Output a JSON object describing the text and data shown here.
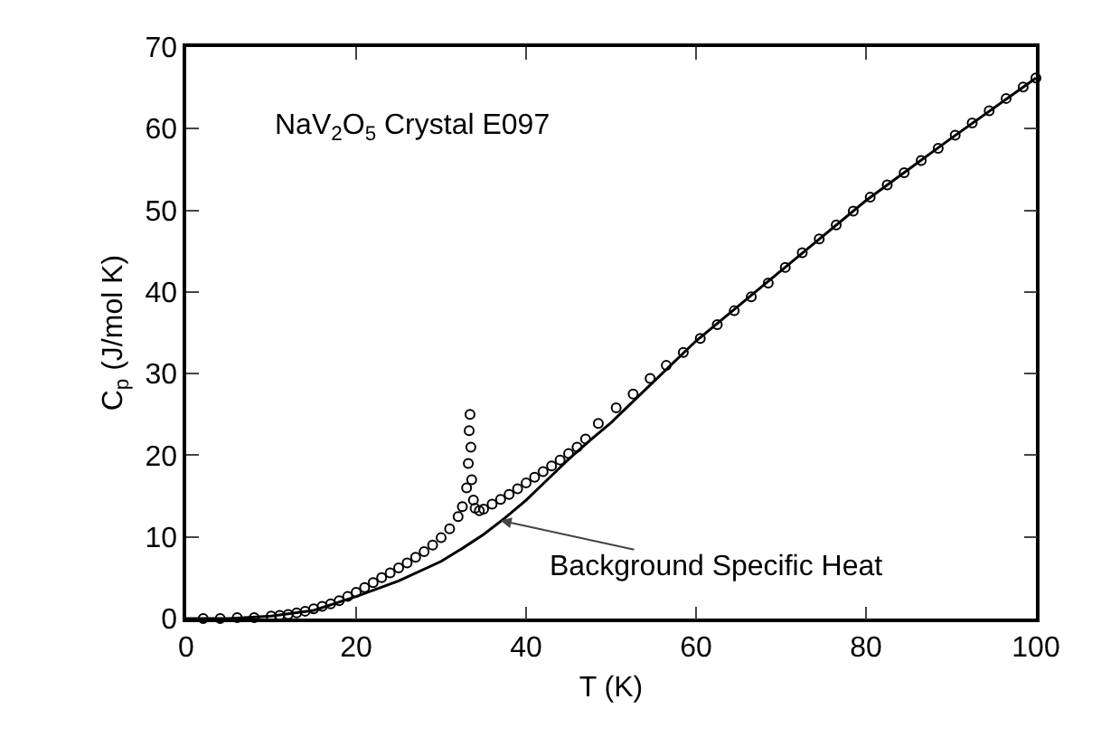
{
  "chart_data": {
    "type": "scatter",
    "xlabel": "T (K)",
    "ylabel": "C$_{p}$ (J/mol K)",
    "xlim": [
      0,
      100
    ],
    "xticks": [
      0,
      20,
      40,
      60,
      80,
      100
    ],
    "ylim": [
      0,
      70
    ],
    "yticks": [
      0,
      10,
      20,
      30,
      40,
      50,
      60,
      70
    ],
    "grid": false,
    "marker": "circle",
    "series": [
      {
        "color": "#000000",
        "x": [
          2,
          4,
          6,
          8,
          10,
          11,
          12,
          13,
          14,
          15,
          16,
          17,
          18,
          19,
          20,
          21,
          22,
          23,
          24,
          25,
          26,
          27,
          28,
          29,
          30,
          31,
          32,
          32.5,
          33,
          33.2,
          33.3,
          33.4,
          33.5,
          33.6,
          33.8,
          34,
          34.5,
          35,
          36,
          37,
          38,
          39,
          40,
          41,
          42,
          43,
          44,
          45,
          46,
          47,
          48.5,
          50.6,
          52.6,
          54.6,
          56.5,
          58.5,
          60.5,
          62.5,
          64.5,
          66.5,
          68.5,
          70.5,
          72.5,
          74.5,
          76.5,
          78.5,
          80.5,
          82.5,
          84.5,
          86.5,
          88.5,
          90.5,
          92.5,
          94.5,
          96.5,
          98.5,
          100
        ],
        "values": [
          0,
          0,
          0.1,
          0.1,
          0.3,
          0.4,
          0.5,
          0.7,
          0.9,
          1.2,
          1.5,
          1.8,
          2.2,
          2.7,
          3.2,
          3.8,
          4.4,
          5,
          5.6,
          6.2,
          6.8,
          7.5,
          8.2,
          9,
          9.9,
          11,
          12.5,
          13.7,
          16,
          19,
          23,
          25,
          21,
          17,
          14.5,
          13.5,
          13.2,
          13.4,
          14,
          14.6,
          15.2,
          15.9,
          16.6,
          17.3,
          18,
          18.7,
          19.4,
          20.2,
          21,
          22,
          23.9,
          25.8,
          27.5,
          29.4,
          31,
          32.6,
          34.3,
          36,
          37.7,
          39.4,
          41.1,
          43,
          44.8,
          46.5,
          48.2,
          49.9,
          51.6,
          53.1,
          54.6,
          56.1,
          57.6,
          59.2,
          60.7,
          62.2,
          63.7,
          65.1,
          66.2
        ]
      },
      {
        "type": "line",
        "color": "#000000",
        "marker": "none",
        "x": [
          0,
          5,
          10,
          15,
          20,
          25,
          30,
          32.5,
          35,
          37.5,
          40,
          42.5,
          45,
          47.5,
          50,
          55,
          60,
          70,
          80,
          90,
          100
        ],
        "values": [
          0,
          0,
          0.3,
          1,
          2.7,
          4.6,
          7,
          8.6,
          10.3,
          12.3,
          14.5,
          17,
          19.5,
          21.8,
          24,
          29,
          34,
          42.6,
          51.2,
          58.8,
          66.2
        ]
      }
    ],
    "annotations": [
      "NaV$_{2}$O$_{5}$ Crystal E097",
      {
        "text": "Background Specific Heat",
        "x": 37,
        "y": 12
      }
    ]
  }
}
